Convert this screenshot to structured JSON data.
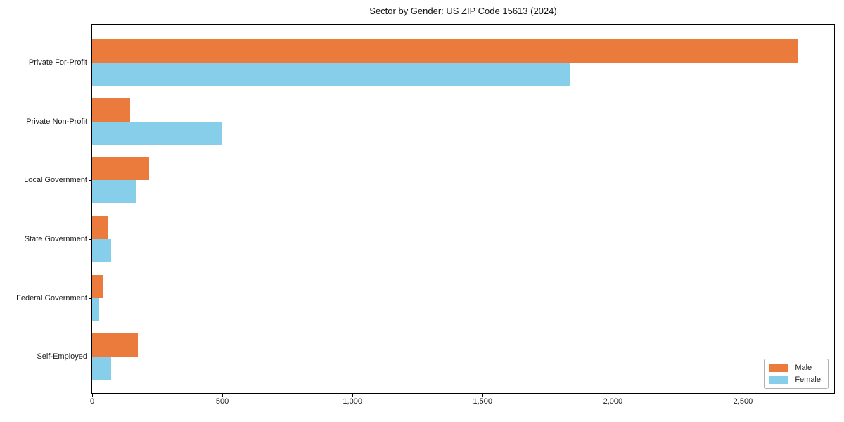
{
  "figure": {
    "background": "#ffffff",
    "text_color": "#1a1a1a",
    "axis_color": "#000000",
    "legend_border_color": "#b0b0b0"
  },
  "chart_data": {
    "type": "bar",
    "orientation": "horizontal",
    "title": "Sector by Gender: US ZIP Code 15613 (2024)",
    "categories": [
      "Private For-Profit",
      "Private Non-Profit",
      "Local Government",
      "State Government",
      "Federal Government",
      "Self-Employed"
    ],
    "series": [
      {
        "name": "Male",
        "color": "#eb7a3d",
        "values": [
          2710,
          145,
          220,
          62,
          42,
          175
        ]
      },
      {
        "name": "Female",
        "color": "#87ceeb",
        "values": [
          1835,
          500,
          170,
          72,
          27,
          72
        ]
      }
    ],
    "xlim": [
      0,
      2850
    ],
    "xticks": [
      0,
      500,
      1000,
      1500,
      2000,
      2500
    ],
    "xtick_labels": [
      "0",
      "500",
      "1,000",
      "1,500",
      "2,000",
      "2,500"
    ],
    "xlabel": "",
    "ylabel": "",
    "grid": false,
    "legend": {
      "position": "lower right",
      "entries": [
        "Male",
        "Female"
      ]
    }
  }
}
